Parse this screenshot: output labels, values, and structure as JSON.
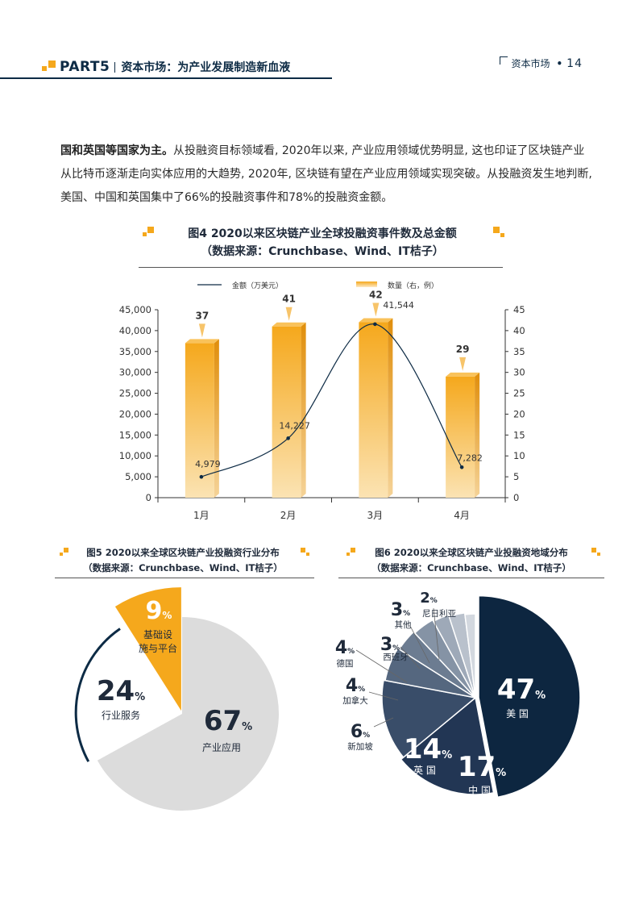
{
  "header": {
    "part": "PART5",
    "title": "资本市场：为产业发展制造新血液",
    "section": "资本市场",
    "page_number": "14"
  },
  "body": {
    "bold_lead": "国和英国等国家为主。",
    "text1": "从投融资目标领域看, 2020年以来, 产业应用领域优势明显, 这也印证了区块链产业从比特币逐渐走向实体应用的大趋势, 2020年, 区块链有望在产业应用领域实现突破。从投融资发生地判断, 美国、中国和英国集中了66%的投融资事件和78%的投融资金额。"
  },
  "fig4": {
    "title": "图4 2020以来区块链产业全球投融资事件数及总金额",
    "source": "（数据来源：Crunchbase、Wind、IT桔子）"
  },
  "fig5": {
    "title": "图5 2020以来全球区块链产业投融资行业分布",
    "source": "（数据来源：Crunchbase、Wind、IT桔子）"
  },
  "fig6": {
    "title": "图6 2020以来全球区块链产业投融资地域分布",
    "source": "（数据来源：Crunchbase、Wind、IT桔子）"
  },
  "colors": {
    "navy": "#0d2b45",
    "orange": "#f5a81c",
    "grey": "#dcdcdc"
  },
  "chart_data": [
    {
      "type": "bar",
      "categories": [
        "1月",
        "2月",
        "3月",
        "4月"
      ],
      "series": [
        {
          "name": "金额（万美元）",
          "type": "line",
          "axis": "left",
          "values": [
            4979,
            14227,
            41544,
            7282
          ],
          "labels": [
            "4,979",
            "14,227",
            "41,544",
            "7,282"
          ]
        },
        {
          "name": "数量（右，例）",
          "type": "bar",
          "axis": "right",
          "values": [
            37,
            41,
            42,
            29
          ],
          "labels": [
            "37",
            "41",
            "42",
            "29"
          ]
        }
      ],
      "ylim_left": [
        0,
        45000
      ],
      "yticks_left": [
        "0",
        "5,000",
        "10,000",
        "15,000",
        "20,000",
        "25,000",
        "30,000",
        "35,000",
        "40,000",
        "45,000"
      ],
      "ylim_right": [
        0,
        45
      ],
      "yticks_right": [
        "0",
        "5",
        "10",
        "15",
        "20",
        "25",
        "30",
        "35",
        "40",
        "45"
      ],
      "legend_position": "top"
    },
    {
      "type": "pie",
      "labels": [
        "产业应用",
        "行业服务",
        "基础设施与平台"
      ],
      "label_lines": [
        [
          "产业应用"
        ],
        [
          "行业服务"
        ],
        [
          "基础设",
          "施与平台"
        ]
      ],
      "values": [
        67,
        24,
        9
      ],
      "unit": "%",
      "colors": [
        "#dcdcdc",
        "#ffffff",
        "#f5a81c"
      ]
    },
    {
      "type": "pie",
      "labels": [
        "美 国",
        "中 国",
        "英 国",
        "新加坡",
        "加拿大",
        "德国",
        "西班牙",
        "其他",
        "尼日利亚"
      ],
      "values": [
        47,
        17,
        14,
        6,
        4,
        4,
        3,
        3,
        2
      ],
      "unit": "%",
      "colors": [
        "#0d2640",
        "#223654",
        "#394d69",
        "#55677f",
        "#6c7c91",
        "#8593a5",
        "#9ea9b8",
        "#b9c1cc",
        "#d3d8df"
      ]
    }
  ]
}
